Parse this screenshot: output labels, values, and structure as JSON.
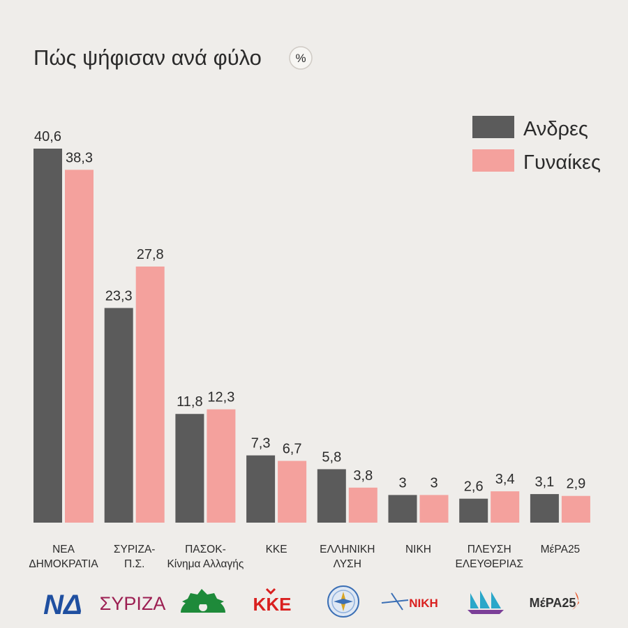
{
  "chart_data": {
    "type": "bar",
    "title": "Πώς ψήφισαν ανά φύλο",
    "unit": "%",
    "categories": [
      [
        "ΝΕΑ",
        "ΔΗΜΟΚΡΑΤΙΑ"
      ],
      [
        "ΣΥΡΙΖΑ-",
        "Π.Σ."
      ],
      [
        "ΠΑΣΟΚ-",
        "Κίνημα Αλλαγής"
      ],
      [
        "ΚΚΕ"
      ],
      [
        "ΕΛΛΗΝΙΚΗ",
        "ΛΥΣΗ"
      ],
      [
        "ΝΙΚΗ"
      ],
      [
        "ΠΛΕΥΣΗ",
        "ΕΛΕΥΘΕΡΙΑΣ"
      ],
      [
        "ΜέΡΑ25"
      ]
    ],
    "series": [
      {
        "name": "Ανδρες",
        "color": "#5b5b5b",
        "values": [
          40.6,
          23.3,
          11.8,
          7.3,
          5.8,
          3,
          2.6,
          3.1
        ],
        "labels": [
          "40,6",
          "23,3",
          "11,8",
          "7,3",
          "5,8",
          "3",
          "2,6",
          "3,1"
        ]
      },
      {
        "name": "Γυναίκες",
        "color": "#f4a19d",
        "values": [
          38.3,
          27.8,
          12.3,
          6.7,
          3.8,
          3,
          3.4,
          2.9
        ],
        "labels": [
          "38,3",
          "27,8",
          "12,3",
          "6,7",
          "3,8",
          "3",
          "3,4",
          "2,9"
        ]
      }
    ],
    "ylim": [
      0,
      40.6
    ],
    "grid": false,
    "legend": "top-right"
  },
  "logos": [
    {
      "name": "nd-logo",
      "text": "ΝΔ",
      "color": "#1f4fa0"
    },
    {
      "name": "syriza-logo",
      "text": "ΣΥΡΙΖΑ",
      "color": "#9c1f52"
    },
    {
      "name": "pasok-logo",
      "text": "",
      "color": "#1e8a3a"
    },
    {
      "name": "kke-logo",
      "text": "ΚΚΕ",
      "color": "#d9201f"
    },
    {
      "name": "elliniki-lysi-logo",
      "text": "",
      "color": "#3b6fb5"
    },
    {
      "name": "niki-logo",
      "text": "ΝΙΚΗ",
      "color": "#d9201f"
    },
    {
      "name": "plefsi-logo",
      "text": "",
      "color": "#2aa7c9"
    },
    {
      "name": "mera25-logo",
      "text": "ΜέΡΑ25",
      "color": "#333333"
    }
  ]
}
